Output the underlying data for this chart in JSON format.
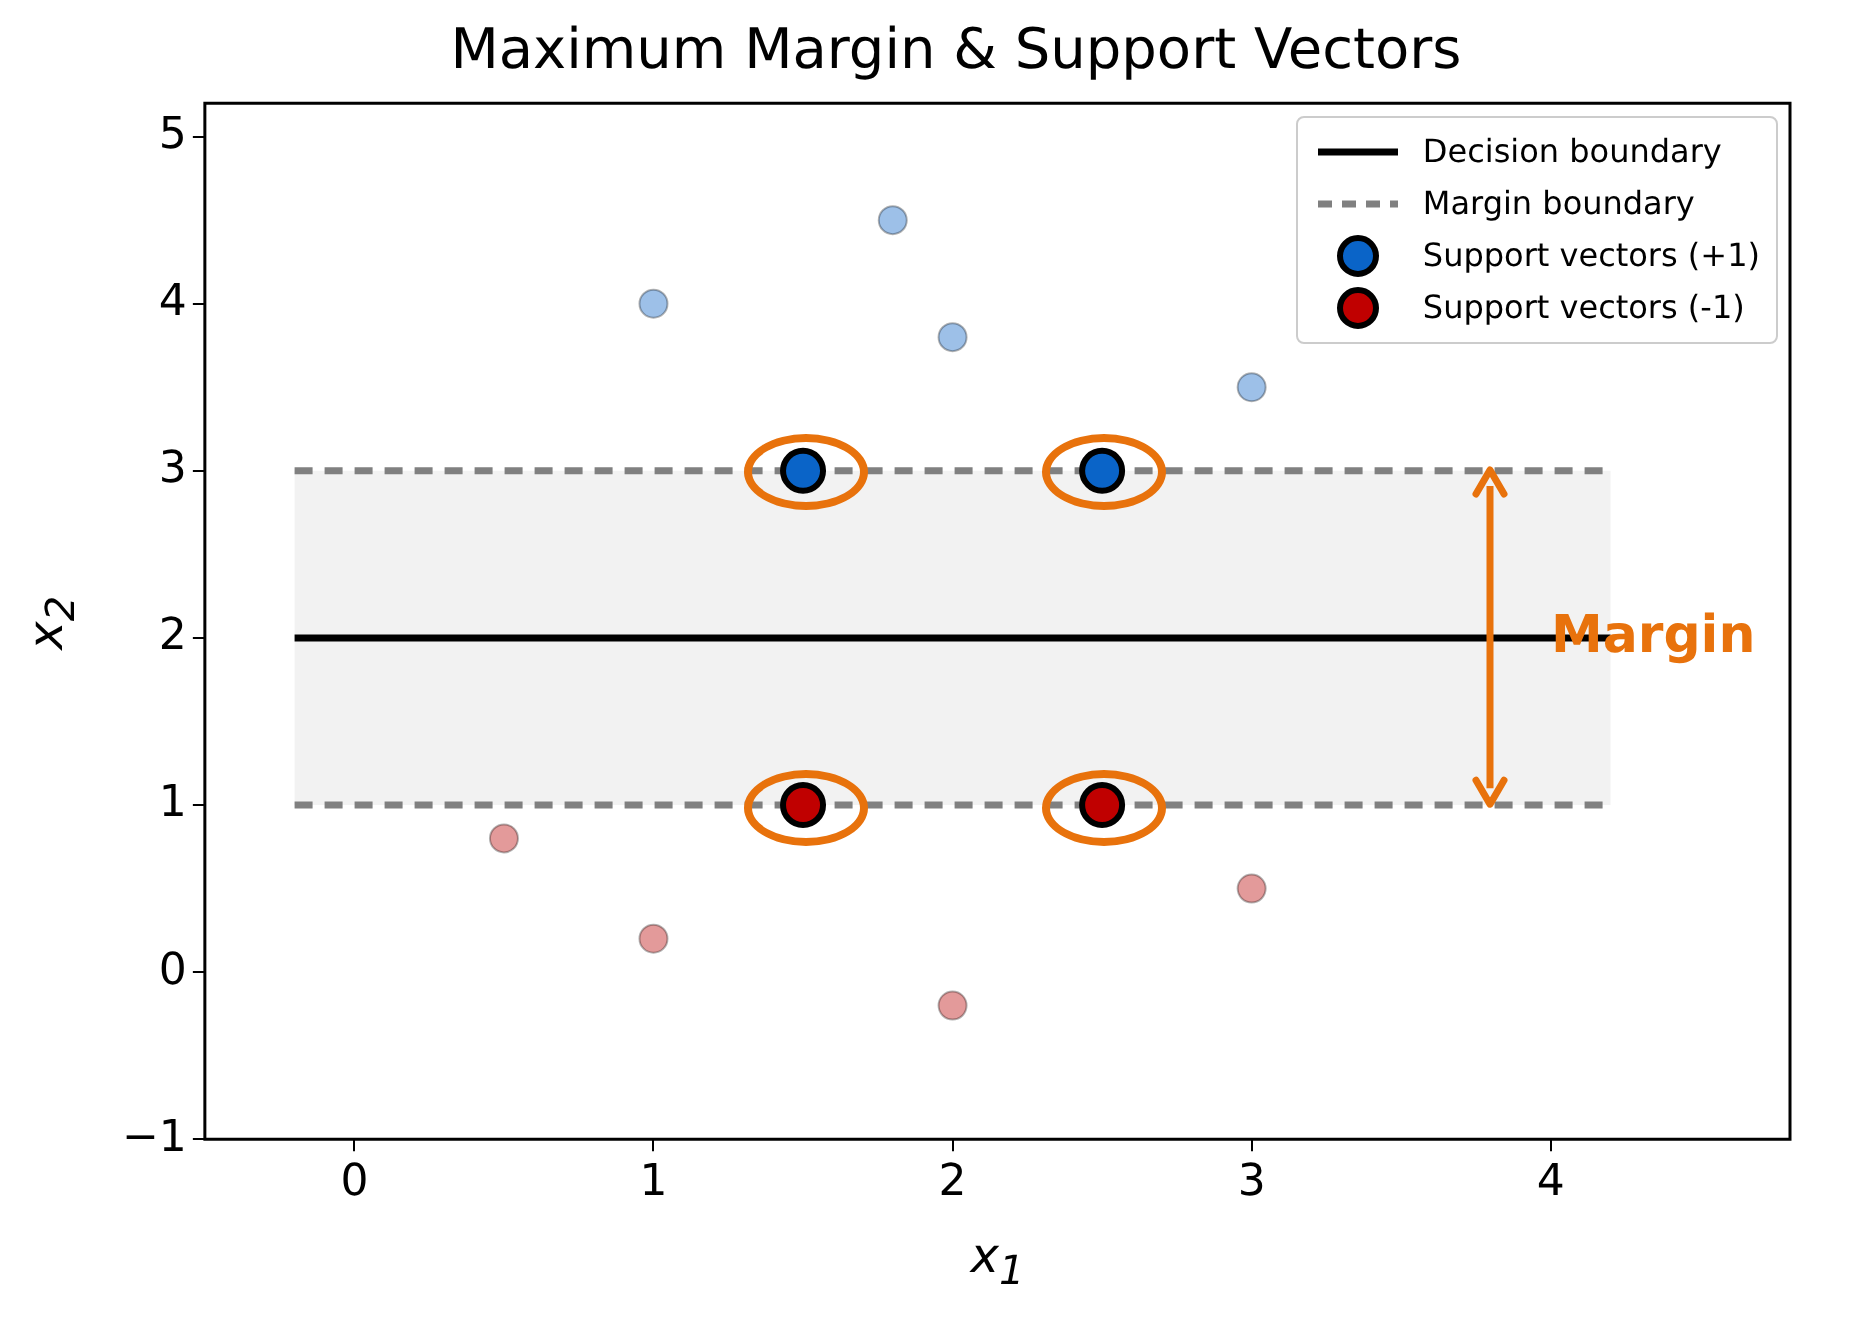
{
  "chart_data": {
    "type": "scatter",
    "title": "Maximum Margin & Support Vectors",
    "xlabel": "x$_{1}$",
    "ylabel": "x$_{2}$",
    "xlim": [
      -0.5,
      4.8
    ],
    "ylim": [
      -1,
      5.2
    ],
    "xticks": [
      0,
      1,
      2,
      3,
      4
    ],
    "yticks": [
      -1,
      0,
      1,
      2,
      3,
      4,
      5
    ],
    "grid": false,
    "legend": "top right",
    "marker": "circle",
    "series": [
      {
        "type": "line",
        "name": "Decision boundary",
        "color": "#000000",
        "x": [
          -0.2,
          4.2
        ],
        "values": [
          2,
          2
        ],
        "line_style": "solid",
        "marker": "none"
      },
      {
        "type": "line",
        "name": "Margin boundary",
        "color": "#808080",
        "x": [
          -0.2,
          4.2
        ],
        "values": [
          3,
          3
        ],
        "line_style": "dashed",
        "marker": "none"
      },
      {
        "type": "line",
        "color": "#808080",
        "x": [
          -0.2,
          4.2
        ],
        "values": [
          1,
          1
        ],
        "line_style": "dashed",
        "marker": "none"
      },
      {
        "color": "#9dc0e8",
        "x": [
          1,
          1.8,
          2,
          3
        ],
        "values": [
          4,
          4.5,
          3.8,
          3.5
        ]
      },
      {
        "color": "#e39a9a",
        "x": [
          0.5,
          1,
          2,
          3
        ],
        "values": [
          0.8,
          0.2,
          -0.2,
          0.5
        ]
      },
      {
        "name": "Support vectors (+1)",
        "color": "#0a64c8",
        "x": [
          1.5,
          2.5
        ],
        "values": [
          3,
          3
        ]
      },
      {
        "name": "Support vectors (-1)",
        "color": "#c00000",
        "x": [
          1.5,
          2.5
        ],
        "values": [
          1,
          1
        ]
      }
    ],
    "bands": [
      {
        "axis": "y",
        "from": 1,
        "to": 3,
        "color": "#f2f2f2"
      }
    ],
    "annotations": [
      {
        "text": "Margin",
        "x": 3.8,
        "y": 2
      }
    ]
  }
}
